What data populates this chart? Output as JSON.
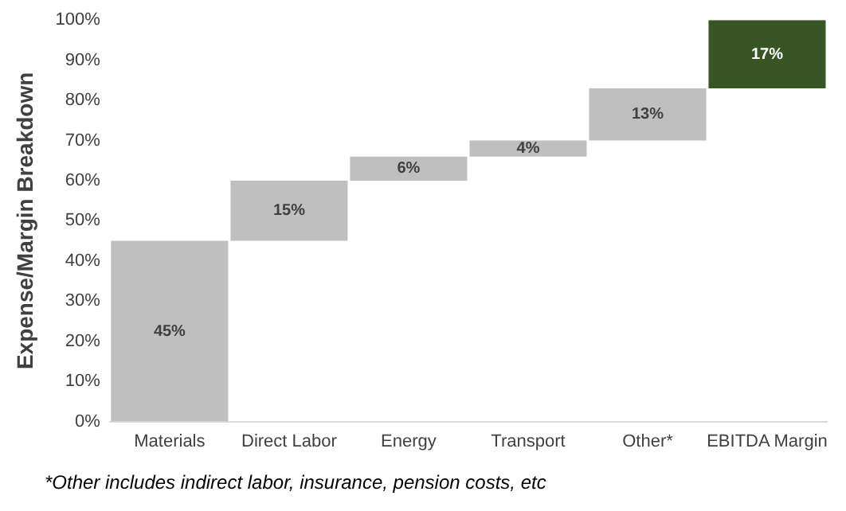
{
  "chart_data": {
    "type": "bar",
    "ylabel": "Expense/Margin Breakdown",
    "categories": [
      "Materials",
      "Direct Labor",
      "Energy",
      "Transport",
      "Other*",
      "EBITDA Margin"
    ],
    "values": [
      45,
      15,
      6,
      4,
      13,
      17
    ],
    "base": [
      0,
      45,
      60,
      66,
      70,
      83
    ],
    "colors": [
      "#bfbfbf",
      "#bfbfbf",
      "#bfbfbf",
      "#bfbfbf",
      "#bfbfbf",
      "#375623"
    ],
    "value_labels": [
      "45%",
      "15%",
      "6%",
      "4%",
      "13%",
      "17%"
    ],
    "ylim": [
      0,
      100
    ],
    "yticks": [
      {
        "value": 0,
        "label": "0%"
      },
      {
        "value": 10,
        "label": "10%"
      },
      {
        "value": 20,
        "label": "20%"
      },
      {
        "value": 30,
        "label": "30%"
      },
      {
        "value": 40,
        "label": "40%"
      },
      {
        "value": 50,
        "label": "50%"
      },
      {
        "value": 60,
        "label": "60%"
      },
      {
        "value": 70,
        "label": "70%"
      },
      {
        "value": 80,
        "label": "80%"
      },
      {
        "value": 90,
        "label": "90%"
      },
      {
        "value": 100,
        "label": "100%"
      }
    ],
    "grid": false,
    "legend": false,
    "annotations": [
      "*Other includes indirect labor, insurance, pension costs, etc"
    ]
  }
}
